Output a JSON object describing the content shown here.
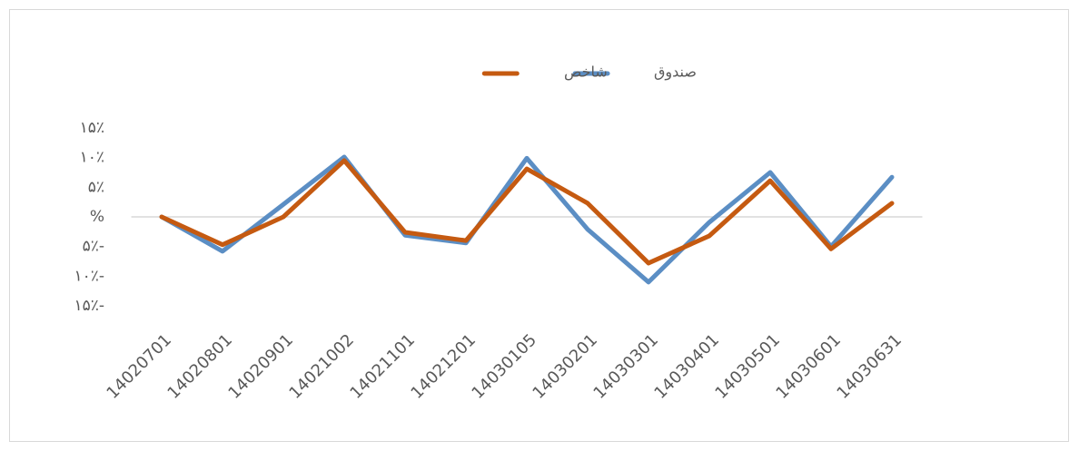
{
  "chart_data": {
    "type": "line",
    "categories": [
      "14020701",
      "14020801",
      "14020901",
      "14021002",
      "14021101",
      "14021201",
      "14030105",
      "14030201",
      "14030301",
      "14030401",
      "14030501",
      "14030601",
      "14030631"
    ],
    "series": [
      {
        "name": "صندوق",
        "color": "#5b8ec4",
        "values": [
          0,
          -5.8,
          2.1,
          10.1,
          -3.1,
          -4.4,
          9.9,
          -2.1,
          -11,
          -0.9,
          7.5,
          -5,
          6.7
        ]
      },
      {
        "name": "شاخص",
        "color": "#c55a11",
        "values": [
          0,
          -4.7,
          0,
          9.5,
          -2.6,
          -4,
          8.1,
          2.3,
          -7.8,
          -3.2,
          6.1,
          -5.4,
          2.3
        ]
      }
    ],
    "ylim": [
      -15,
      15
    ],
    "yticks": [
      {
        "value": 15,
        "label": "۱۵٪"
      },
      {
        "value": 10,
        "label": "۱۰٪"
      },
      {
        "value": 5,
        "label": "۵٪"
      },
      {
        "value": 0,
        "label": "%"
      },
      {
        "value": -5,
        "label": "۵٪-"
      },
      {
        "value": -10,
        "label": "۱۰٪-"
      },
      {
        "value": -15,
        "label": "۱۵٪-"
      }
    ],
    "grid": false
  }
}
